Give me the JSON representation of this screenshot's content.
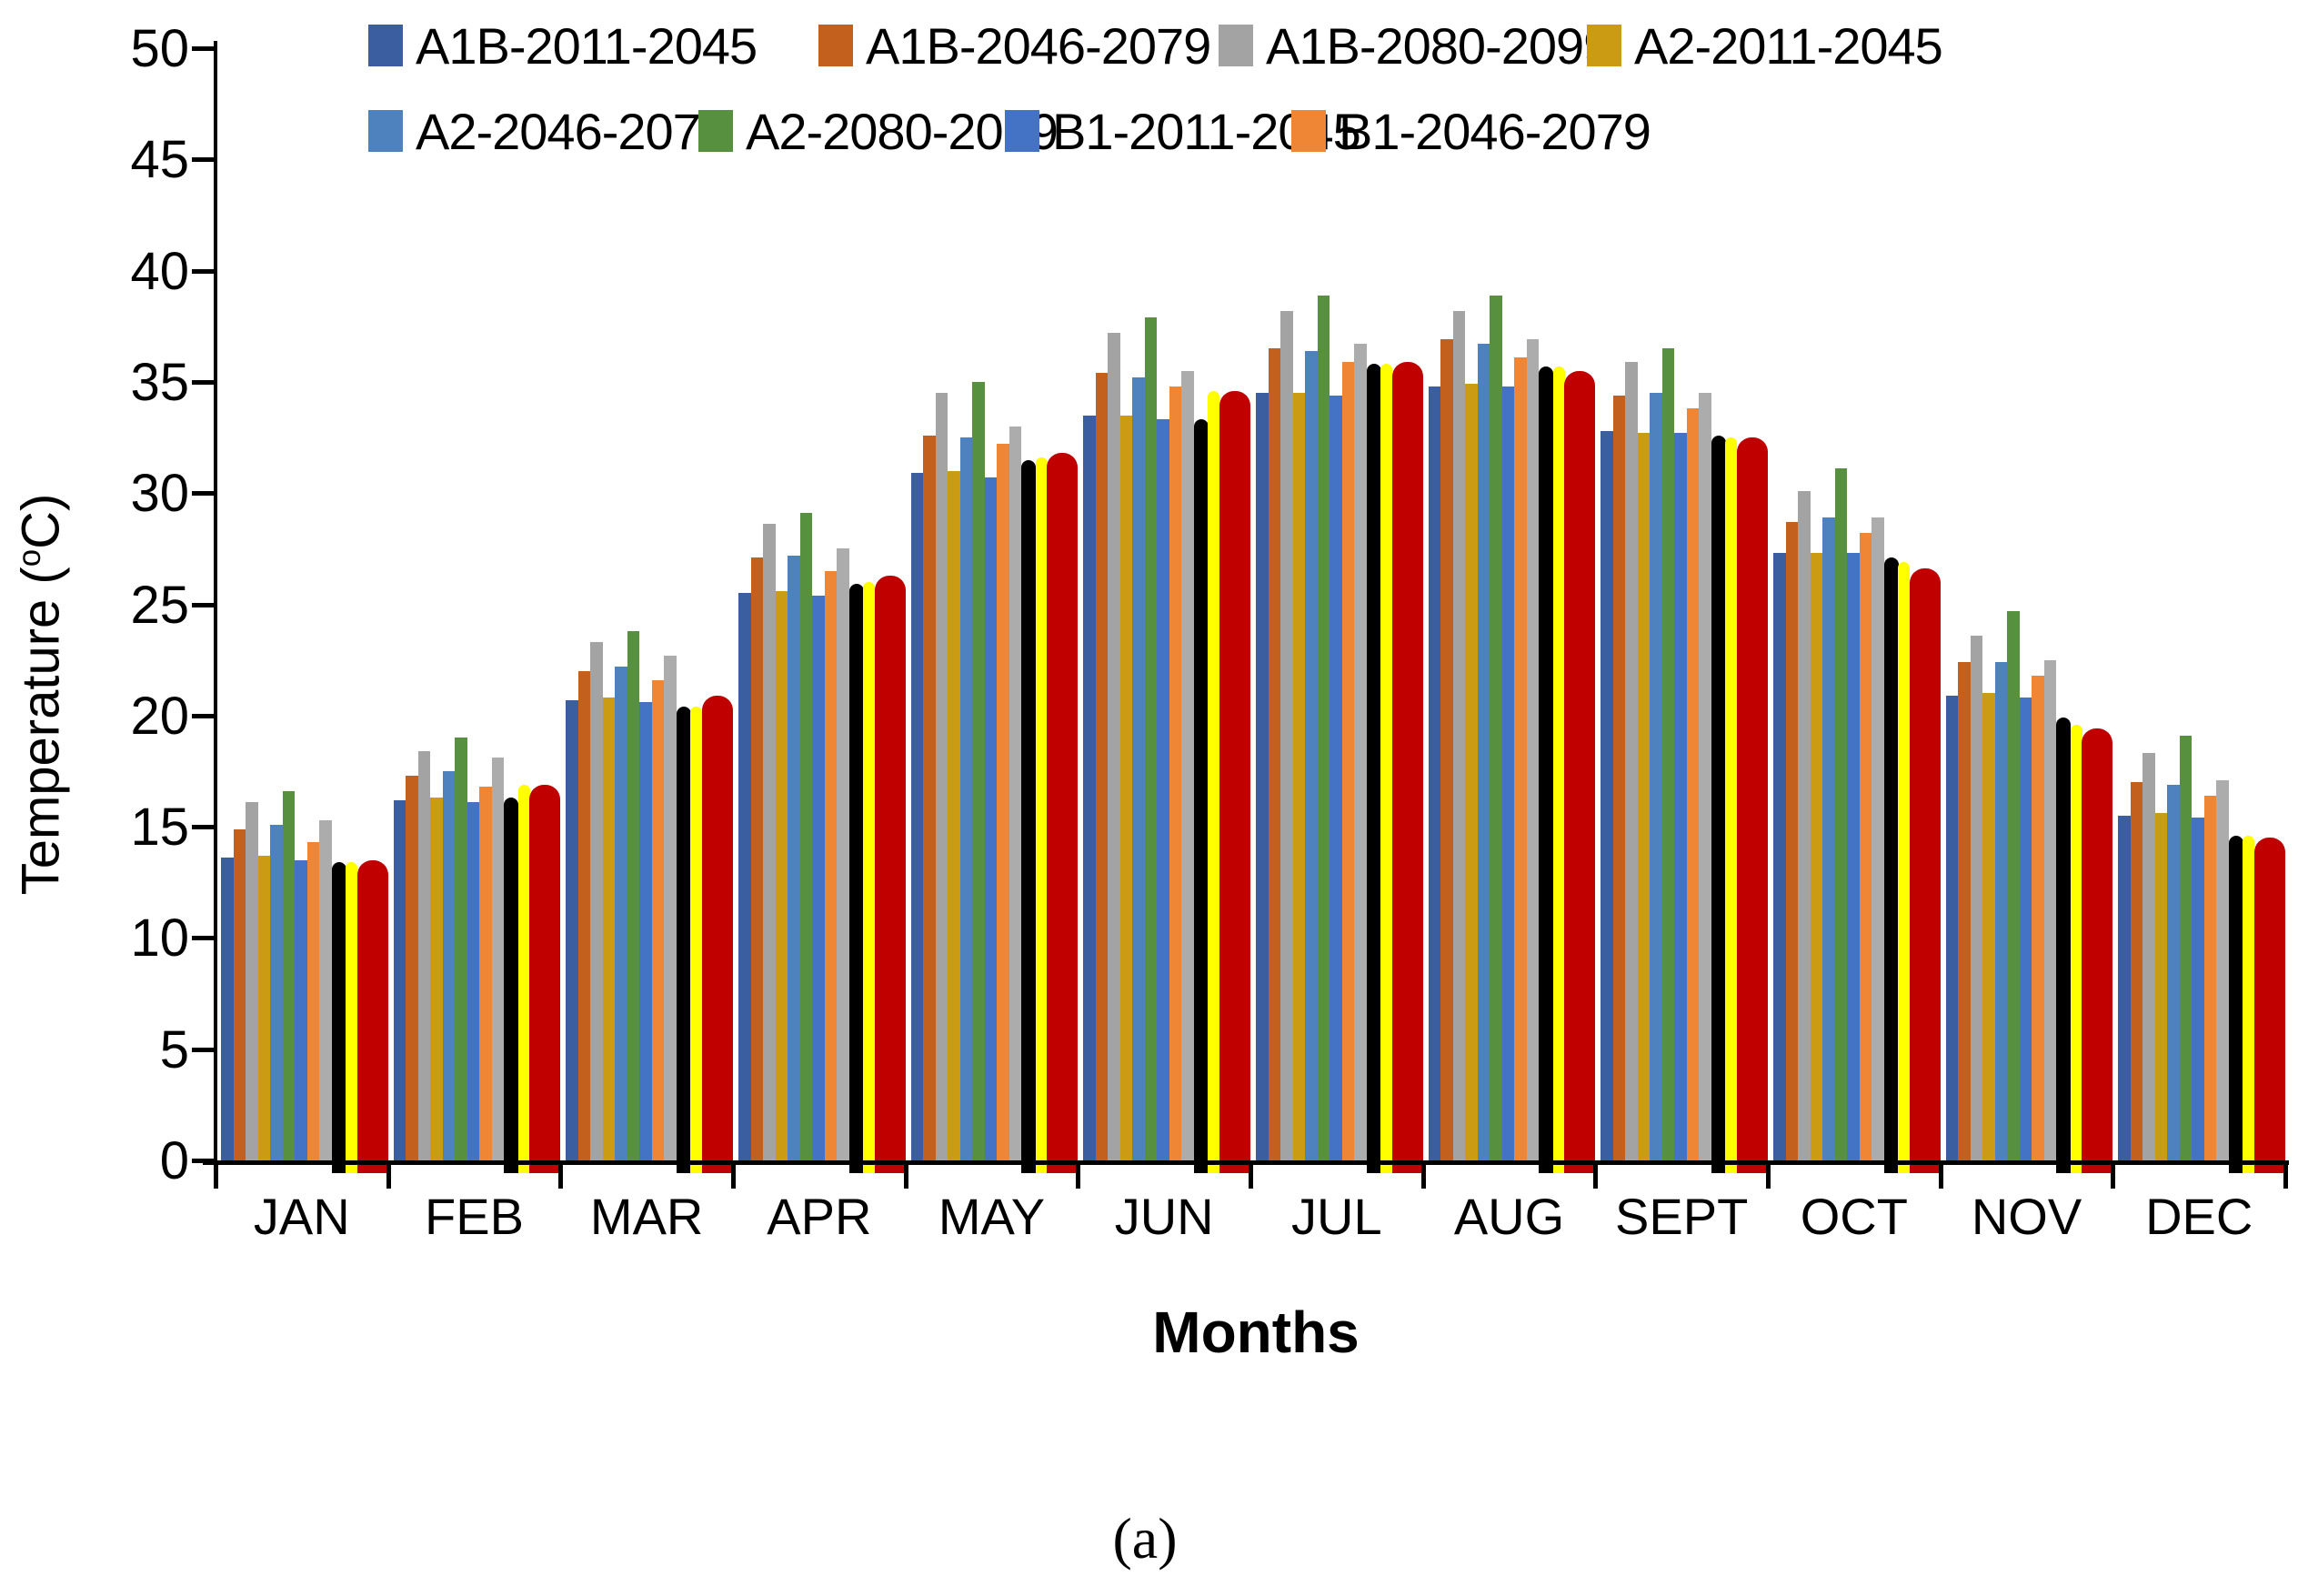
{
  "legend": {
    "items": [
      {
        "label": "A1B-2011-2045",
        "color": "#3B5EA0"
      },
      {
        "label": "A1B-2046-2079",
        "color": "#C4601E"
      },
      {
        "label": "A1B-2080-2099",
        "color": "#A3A3A3"
      },
      {
        "label": "A2-2011-2045",
        "color": "#CB9C13"
      },
      {
        "label": "A2-2046-2079",
        "color": "#4E82BE"
      },
      {
        "label": "A2-2080-2099",
        "color": "#579140"
      },
      {
        "label": "B1-2011-2045",
        "color": "#4472C4"
      },
      {
        "label": "B1-2046-2079",
        "color": "#EF8636"
      }
    ]
  },
  "y_axis": {
    "title_pre": "Temperature (",
    "title_sup": "o",
    "title_post": "C)",
    "ticks": [
      0,
      5,
      10,
      15,
      20,
      25,
      30,
      35,
      40,
      45,
      50
    ]
  },
  "x_axis": {
    "title": "Months"
  },
  "caption": "(a)",
  "chart_data": {
    "type": "bar",
    "title": "",
    "xlabel": "Months",
    "ylabel": "Temperature (oC)",
    "ylim": [
      0,
      50
    ],
    "grid": false,
    "legend_position": "top",
    "categories": [
      "JAN",
      "FEB",
      "MAR",
      "APR",
      "MAY",
      "JUN",
      "JUL",
      "AUG",
      "SEPT",
      "OCT",
      "NOV",
      "DEC"
    ],
    "series": [
      {
        "name": "A1B-2011-2045",
        "color": "#3B5EA0",
        "values": [
          13.6,
          16.2,
          20.7,
          25.5,
          30.9,
          33.5,
          34.5,
          34.8,
          32.8,
          27.3,
          20.9,
          15.5
        ]
      },
      {
        "name": "A1B-2046-2079",
        "color": "#C4601E",
        "values": [
          14.9,
          17.3,
          22.0,
          27.1,
          32.6,
          35.4,
          36.5,
          36.9,
          34.4,
          28.7,
          22.4,
          17.0
        ]
      },
      {
        "name": "A1B-2080-2099",
        "color": "#A3A3A3",
        "values": [
          16.1,
          18.4,
          23.3,
          28.6,
          34.5,
          37.2,
          38.2,
          38.2,
          35.9,
          30.1,
          23.6,
          18.3
        ]
      },
      {
        "name": "A2-2011-2045",
        "color": "#CB9C13",
        "values": [
          13.7,
          16.3,
          20.8,
          25.6,
          31.0,
          33.5,
          34.5,
          34.9,
          32.7,
          27.3,
          21.0,
          15.6
        ]
      },
      {
        "name": "A2-2046-2079",
        "color": "#4E82BE",
        "values": [
          15.1,
          17.5,
          22.2,
          27.2,
          32.5,
          35.2,
          36.4,
          36.7,
          34.5,
          28.9,
          22.4,
          16.9
        ]
      },
      {
        "name": "A2-2080-2099",
        "color": "#579140",
        "values": [
          16.6,
          19.0,
          23.8,
          29.1,
          35.0,
          37.9,
          38.9,
          38.9,
          36.5,
          31.1,
          24.7,
          19.1
        ]
      },
      {
        "name": "B1-2011-2045",
        "color": "#4472C4",
        "values": [
          13.5,
          16.1,
          20.6,
          25.4,
          30.7,
          33.3,
          34.4,
          34.8,
          32.7,
          27.3,
          20.8,
          15.4
        ]
      },
      {
        "name": "B1-2046-2079",
        "color": "#EF8636",
        "values": [
          14.3,
          16.8,
          21.6,
          26.5,
          32.2,
          34.8,
          35.9,
          36.1,
          33.8,
          28.2,
          21.8,
          16.4
        ]
      },
      {
        "name": "unlabeled-gray",
        "color": "#ACACAC",
        "values": [
          15.3,
          18.1,
          22.7,
          27.5,
          33.0,
          35.5,
          36.7,
          36.9,
          34.5,
          28.9,
          22.5,
          17.1
        ]
      },
      {
        "name": "unlabeled-black",
        "color": "#000000",
        "values": [
          13.4,
          16.3,
          20.4,
          25.9,
          31.5,
          33.3,
          35.8,
          35.7,
          32.6,
          27.1,
          19.9,
          14.6
        ]
      },
      {
        "name": "unlabeled-yellow",
        "color": "#FFFF00",
        "values": [
          13.4,
          16.9,
          20.4,
          26.0,
          31.6,
          34.6,
          35.8,
          35.7,
          32.5,
          26.9,
          19.6,
          14.6
        ]
      },
      {
        "name": "unlabeled-red",
        "color": "#C00000",
        "values": [
          13.5,
          16.9,
          20.9,
          26.3,
          31.8,
          34.6,
          35.9,
          35.5,
          32.5,
          26.6,
          19.4,
          14.5
        ]
      }
    ],
    "notes": "Only 8 series are labeled in the visible legend; the light-gray, black, yellow and dark-red bars are unlabeled. Black/yellow/red bars have rounded tops and overhang the baseline; the red bar is ~2.5x wider."
  }
}
